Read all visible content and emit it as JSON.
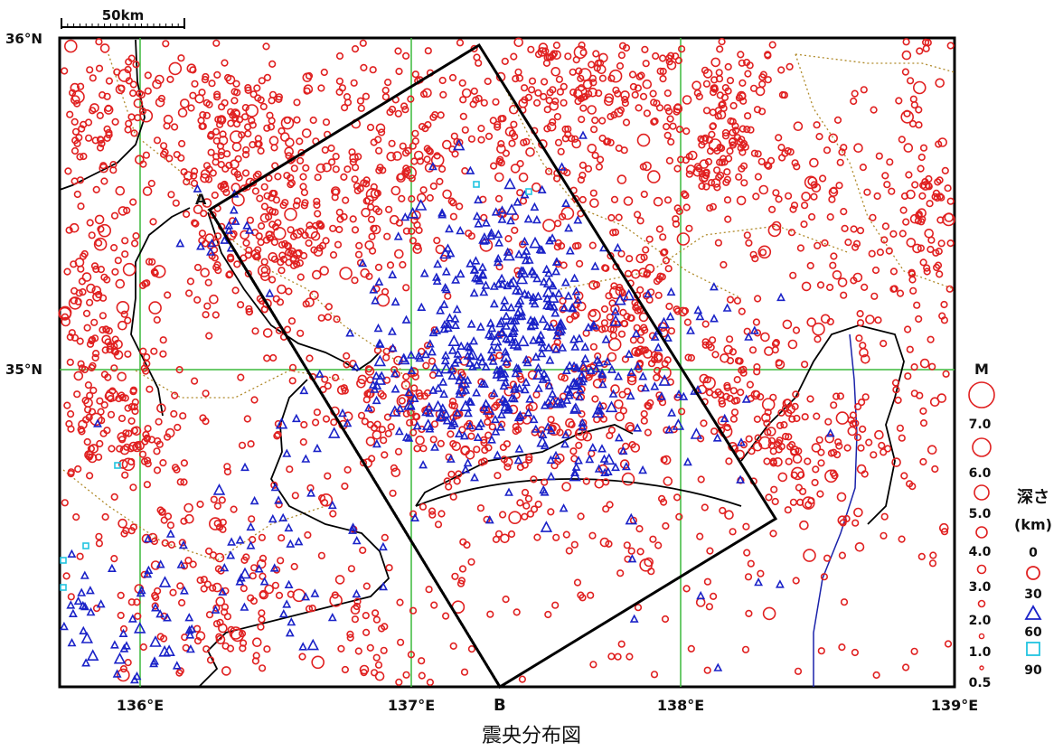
{
  "map": {
    "scale_bar": {
      "label": "50km"
    },
    "latitude_labels": [
      "36°N",
      "35°N"
    ],
    "longitude_labels": [
      "136°E",
      "137°E",
      "138°E",
      "139°E"
    ],
    "profile_points": [
      "A",
      "B"
    ],
    "colors": {
      "shallow": "#e02020",
      "intermediate": "#1a22c8",
      "deep": "#22c4e0",
      "grid": "#3cba3c",
      "coast": "#000000",
      "prefecture_border": "#b08a2a",
      "trench": "#1a22aa"
    }
  },
  "legend": {
    "magnitude_title": "M",
    "magnitudes": [
      "7.0",
      "6.0",
      "5.0",
      "4.0",
      "3.0",
      "2.0",
      "1.0",
      "0.5"
    ],
    "depth_title": "深さ",
    "depth_unit": "(km)",
    "depths": [
      "0",
      "30",
      "60",
      "90"
    ]
  },
  "caption": "震央分布図"
}
